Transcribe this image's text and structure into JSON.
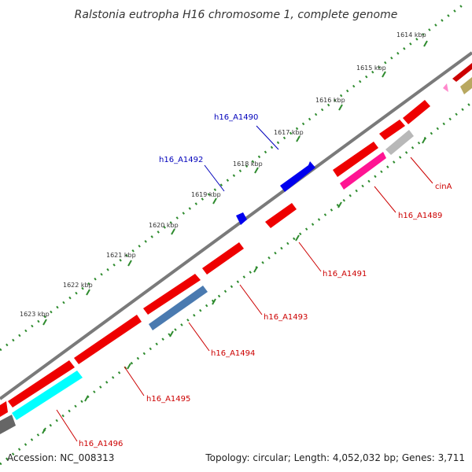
{
  "title": "Ralstonia eutropha H16 chromosome 1, complete genome",
  "accession": "Accession: NC_008313",
  "stats": "Topology: circular; Length: 4,052,032 bp; Genes: 3,711",
  "colors": {
    "backbone": "#7a7a7a",
    "tick": "#2e8b2e",
    "plus_label": "#0000bb",
    "minus_label": "#cc0000"
  },
  "kbp_ticks": [
    "1614 kbp",
    "1615 kbp",
    "1616 kbp",
    "1617 kbp",
    "1618 kbp",
    "1619 kbp",
    "1620 kbp",
    "1621 kbp",
    "1622 kbp",
    "1623 kbp"
  ],
  "gene_labels": [
    {
      "text": "h16_A1490",
      "strand": "plus"
    },
    {
      "text": "h16_A1492",
      "strand": "plus"
    },
    {
      "text": "cinA",
      "strand": "minus"
    },
    {
      "text": "h16_A1489",
      "strand": "minus"
    },
    {
      "text": "h16_A1491",
      "strand": "minus"
    },
    {
      "text": "h16_A1493",
      "strand": "minus"
    },
    {
      "text": "h16_A1494",
      "strand": "minus"
    },
    {
      "text": "h16_A1495",
      "strand": "minus"
    },
    {
      "text": "h16_A1496",
      "strand": "minus"
    }
  ]
}
